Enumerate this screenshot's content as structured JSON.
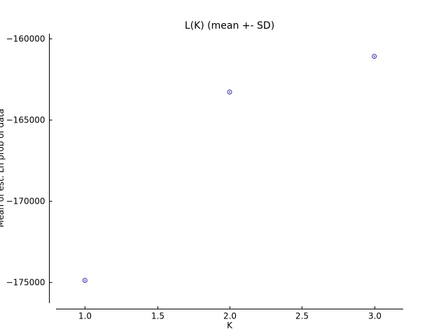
{
  "chart_data": {
    "type": "scatter",
    "title": "L(K) (mean +- SD)",
    "xlabel": "K",
    "ylabel": "Mean of est. Ln prob of data",
    "xlim": [
      0.8,
      3.2
    ],
    "ylim": [
      -176300,
      -159700
    ],
    "xticks": [
      1.0,
      1.5,
      2.0,
      2.5,
      3.0
    ],
    "xtick_labels": [
      "1.0",
      "1.5",
      "2.0",
      "2.5",
      "3.0"
    ],
    "yticks": [
      -160000,
      -165000,
      -170000,
      -175000
    ],
    "ytick_labels": [
      "−160000",
      "−165000",
      "−170000",
      "−175000"
    ],
    "grid": false,
    "marker": "open-circle",
    "marker_color": "#3333aa",
    "series": [
      {
        "x": [
          1,
          2,
          3
        ],
        "y": [
          -174900,
          -163300,
          -161100
        ]
      }
    ]
  }
}
